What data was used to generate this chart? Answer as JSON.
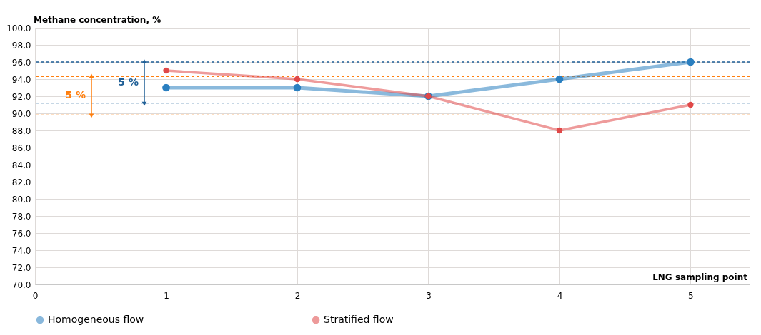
{
  "chart_data": {
    "type": "line",
    "ylabel": "Methane concentration, %",
    "xlabel": "LNG sampling point",
    "x": [
      1,
      2,
      3,
      4,
      5
    ],
    "series": [
      {
        "name": "Homogeneous flow",
        "color": "#2a7fc0",
        "values": [
          93,
          93,
          92,
          94,
          96
        ]
      },
      {
        "name": "Stratified flow",
        "color": "#e04848",
        "values": [
          95,
          94,
          92,
          88,
          91
        ]
      }
    ],
    "xlim": [
      0,
      5.45
    ],
    "xticks": [
      0,
      1,
      2,
      3,
      4,
      5
    ],
    "ylim": [
      70,
      100
    ],
    "yticks": [
      {
        "value": 70,
        "label": "70,0"
      },
      {
        "value": 72,
        "label": "72,0"
      },
      {
        "value": 74,
        "label": "74,0"
      },
      {
        "value": 76,
        "label": "76,0"
      },
      {
        "value": 78,
        "label": "78,0"
      },
      {
        "value": 80,
        "label": "80,0"
      },
      {
        "value": 82,
        "label": "82,0"
      },
      {
        "value": 84,
        "label": "84,0"
      },
      {
        "value": 86,
        "label": "86,0"
      },
      {
        "value": 88,
        "label": "88,0"
      },
      {
        "value": 90,
        "label": "90,0"
      },
      {
        "value": 92,
        "label": "92,0"
      },
      {
        "value": 94,
        "label": "94,0"
      },
      {
        "value": 96,
        "label": "96,0"
      },
      {
        "value": 98,
        "label": "98,0"
      },
      {
        "value": 100,
        "label": "100,0"
      }
    ],
    "ref_lines": [
      {
        "axis": "y",
        "value": 94.3,
        "color": "#ff7f0e",
        "line_style": "dashed"
      },
      {
        "axis": "y",
        "value": 89.8,
        "color": "#ff7f0e",
        "line_style": "dashed"
      },
      {
        "axis": "y",
        "value": 96,
        "color": "#1f5f96",
        "line_style": "dashed"
      },
      {
        "axis": "y",
        "value": 91.2,
        "color": "#1f5f96",
        "line_style": "dashed"
      }
    ],
    "annotations": [
      "5 %",
      "5 %"
    ],
    "grid": true,
    "legend": "bottom",
    "marker": "circle",
    "line_style": "solid"
  }
}
